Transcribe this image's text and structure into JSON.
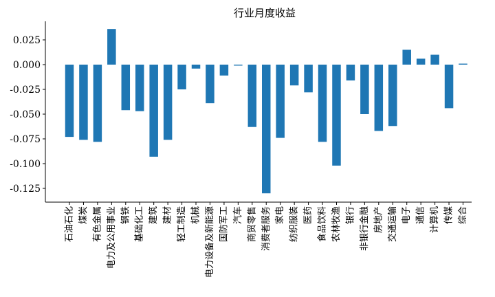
{
  "chart_data": {
    "type": "bar",
    "title": "行业月度收益",
    "xlabel": "",
    "ylabel": "",
    "ylim": [
      -0.14,
      0.045
    ],
    "yticks": [
      0.025,
      0.0,
      -0.025,
      -0.05,
      -0.075,
      -0.1,
      -0.125
    ],
    "ytick_labels": [
      "0.025",
      "0.000",
      "-0.025",
      "-0.050",
      "-0.075",
      "-0.100",
      "-0.125"
    ],
    "grid": false,
    "bar_color": "#1f77b4",
    "categories": [
      "石油石化",
      "煤炭",
      "有色金属",
      "电力及公用事业",
      "钢铁",
      "基础化工",
      "建筑",
      "建材",
      "轻工制造",
      "机械",
      "电力设备及新能源",
      "国防军工",
      "汽车",
      "商贸零售",
      "消费者服务",
      "家电",
      "纺织服装",
      "医药",
      "食品饮料",
      "农林牧渔",
      "银行",
      "非银行金融",
      "房地产",
      "交通运输",
      "电子",
      "通信",
      "计算机",
      "传媒",
      "综合"
    ],
    "values": [
      -0.073,
      -0.076,
      -0.078,
      0.036,
      -0.046,
      -0.047,
      -0.093,
      -0.076,
      -0.025,
      -0.004,
      -0.039,
      -0.011,
      -0.001,
      -0.063,
      -0.13,
      -0.074,
      -0.021,
      -0.028,
      -0.078,
      -0.102,
      -0.016,
      -0.05,
      -0.067,
      -0.062,
      0.015,
      0.006,
      0.01,
      -0.044,
      0.001
    ]
  }
}
